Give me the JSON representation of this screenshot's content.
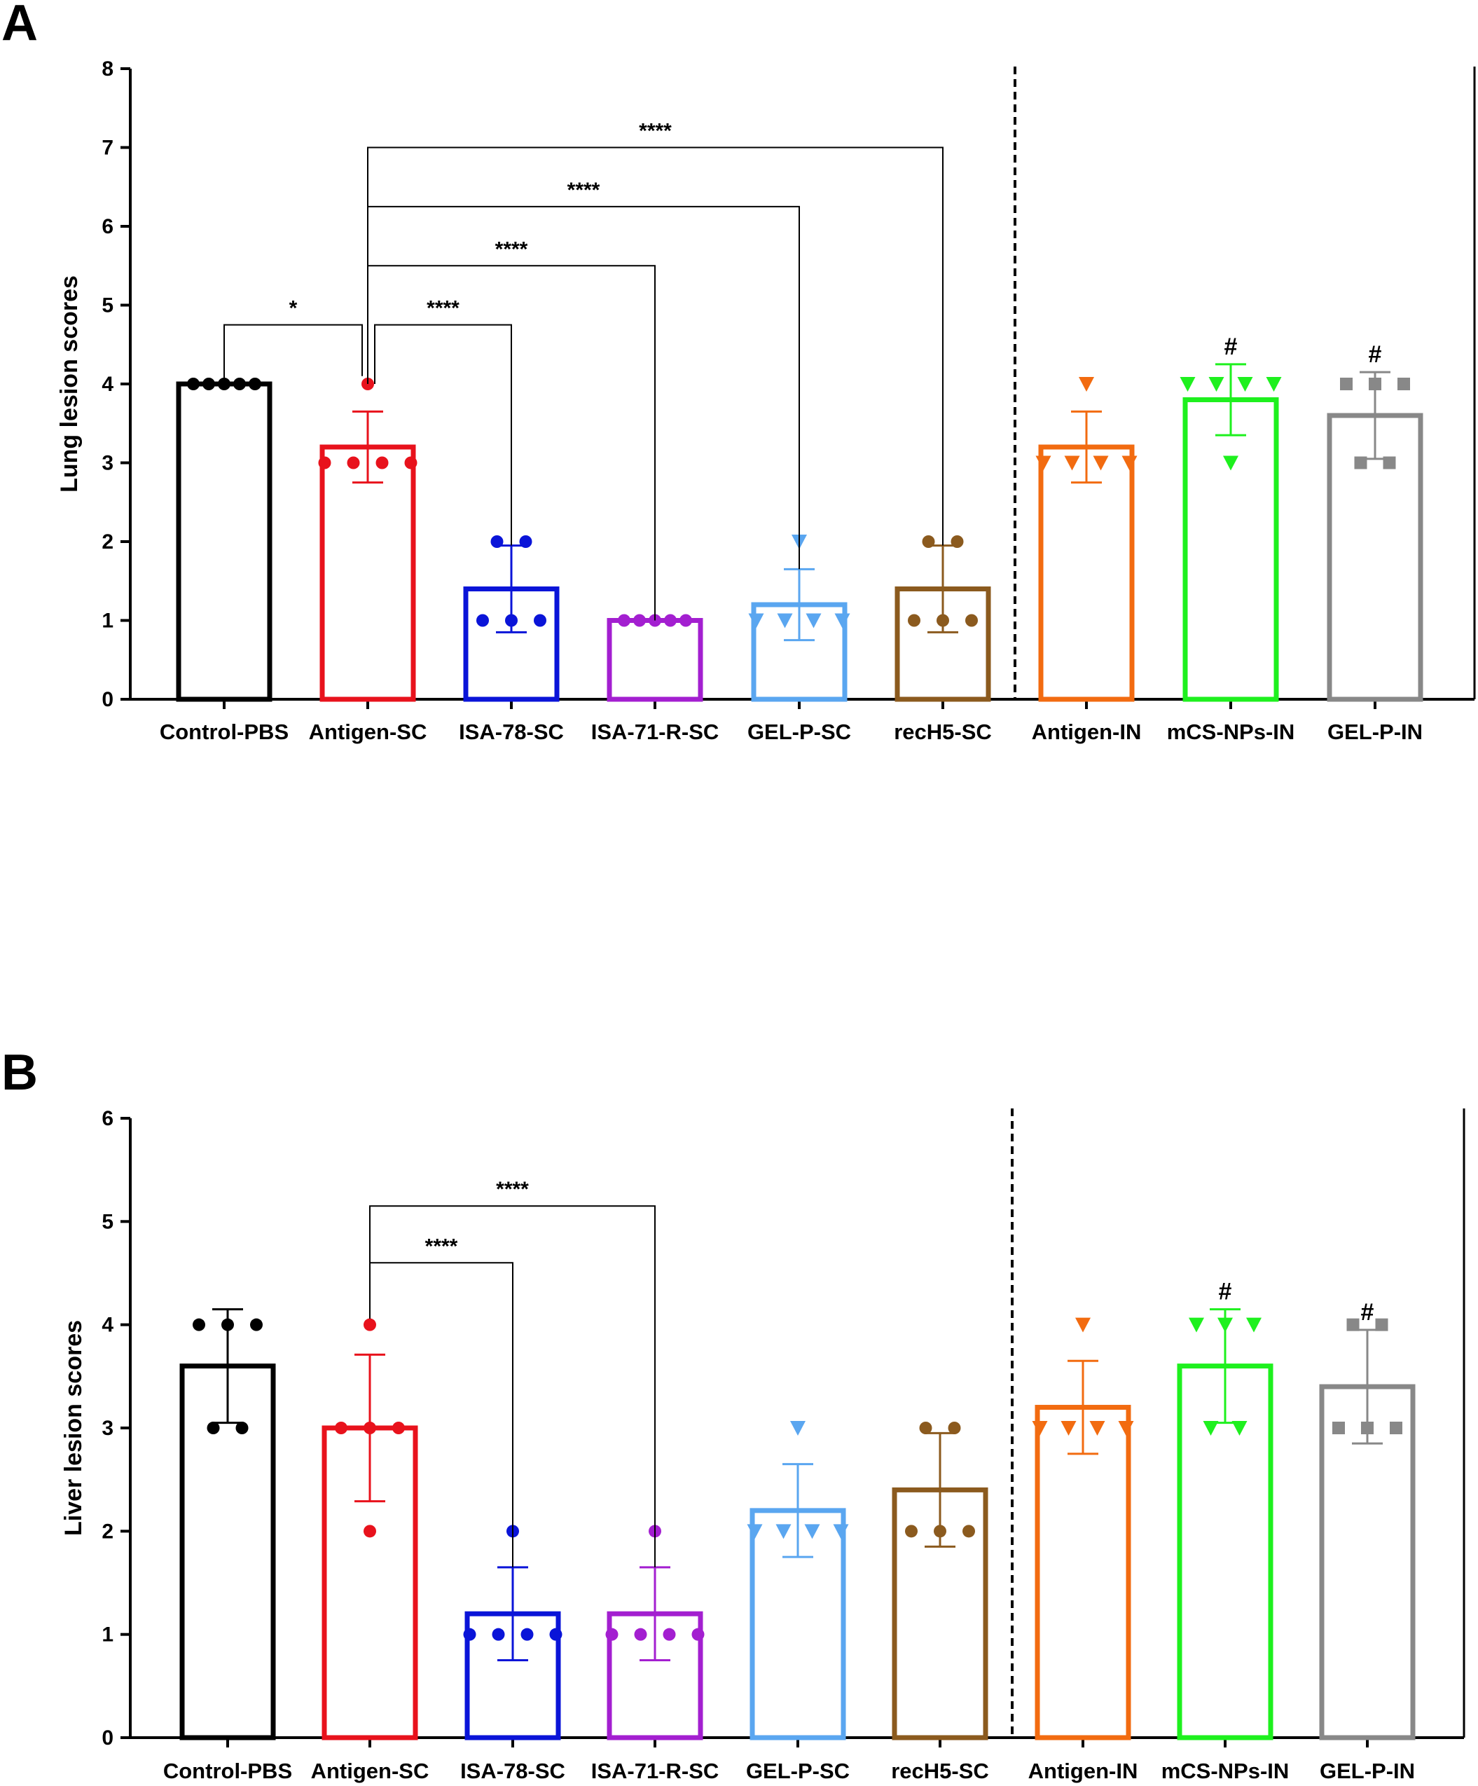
{
  "chart_data": [
    {
      "panel": "A",
      "type": "bar",
      "ylabel": "Lung lesion scores",
      "ylim": [
        0,
        8
      ],
      "yticks": [
        0,
        1,
        2,
        3,
        4,
        5,
        6,
        7,
        8
      ],
      "categories": [
        "Control-PBS",
        "Antigen-SC",
        "ISA-78-SC",
        "ISA-71-R-SC",
        "GEL-P-SC",
        "recH5-SC",
        "Antigen-IN",
        "mCS-NPs-IN",
        "GEL-P-IN"
      ],
      "colors": [
        "#000000",
        "#e8121c",
        "#0a14d8",
        "#a31fd0",
        "#5aa6f0",
        "#8b5a1e",
        "#f26b10",
        "#1ef01e",
        "#888888"
      ],
      "markers": [
        "circle",
        "circle",
        "circle",
        "circle",
        "triangle-down",
        "circle",
        "triangle-down",
        "triangle-down",
        "square"
      ],
      "means": [
        4.0,
        3.2,
        1.4,
        1.0,
        1.2,
        1.4,
        3.2,
        3.8,
        3.6
      ],
      "sd": [
        0,
        0.45,
        0.55,
        0,
        0.45,
        0.55,
        0.45,
        0.45,
        0.55
      ],
      "points": [
        [
          4,
          4,
          4,
          4,
          4
        ],
        [
          4,
          3,
          3,
          3,
          3
        ],
        [
          2,
          2,
          1,
          1,
          1
        ],
        [
          1,
          1,
          1,
          1,
          1
        ],
        [
          2,
          1,
          1,
          1,
          1
        ],
        [
          2,
          2,
          1,
          1,
          1
        ],
        [
          4,
          3,
          3,
          3,
          3
        ],
        [
          4,
          4,
          4,
          4,
          3
        ],
        [
          4,
          4,
          4,
          3,
          3
        ]
      ],
      "significance": [
        {
          "from": 0,
          "to": 1,
          "y": 4.75,
          "label": "*"
        },
        {
          "from": 1,
          "to": 2,
          "y": 4.75,
          "label": "****"
        },
        {
          "from": 1,
          "to": 3,
          "y": 5.5,
          "label": "****"
        },
        {
          "from": 1,
          "to": 4,
          "y": 6.25,
          "label": "****"
        },
        {
          "from": 1,
          "to": 5,
          "y": 7.0,
          "label": "****"
        }
      ],
      "hash_marks": [
        {
          "index": 7,
          "label": "#"
        },
        {
          "index": 8,
          "label": "#"
        }
      ],
      "divider_after": 5
    },
    {
      "panel": "B",
      "type": "bar",
      "ylabel": "Liver lesion scores",
      "ylim": [
        0,
        6
      ],
      "yticks": [
        0,
        1,
        2,
        3,
        4,
        5,
        6
      ],
      "categories": [
        "Control-PBS",
        "Antigen-SC",
        "ISA-78-SC",
        "ISA-71-R-SC",
        "GEL-P-SC",
        "recH5-SC",
        "Antigen-IN",
        "mCS-NPs-IN",
        "GEL-P-IN"
      ],
      "colors": [
        "#000000",
        "#e8121c",
        "#0a14d8",
        "#a31fd0",
        "#5aa6f0",
        "#8b5a1e",
        "#f26b10",
        "#1ef01e",
        "#888888"
      ],
      "markers": [
        "circle",
        "circle",
        "circle",
        "circle",
        "triangle-down",
        "circle",
        "triangle-down",
        "triangle-down",
        "square"
      ],
      "means": [
        3.6,
        3.0,
        1.2,
        1.2,
        2.2,
        2.4,
        3.2,
        3.6,
        3.4
      ],
      "sd": [
        0.55,
        0.71,
        0.45,
        0.45,
        0.45,
        0.55,
        0.45,
        0.55,
        0.55
      ],
      "points": [
        [
          4,
          4,
          4,
          3,
          3
        ],
        [
          4,
          3,
          3,
          3,
          2
        ],
        [
          2,
          1,
          1,
          1,
          1
        ],
        [
          2,
          1,
          1,
          1,
          1
        ],
        [
          3,
          2,
          2,
          2,
          2
        ],
        [
          3,
          3,
          2,
          2,
          2
        ],
        [
          4,
          3,
          3,
          3,
          3
        ],
        [
          4,
          4,
          4,
          3,
          3
        ],
        [
          4,
          4,
          3,
          3,
          3
        ]
      ],
      "significance": [
        {
          "from": 1,
          "to": 2,
          "y": 4.6,
          "label": "****"
        },
        {
          "from": 1,
          "to": 3,
          "y": 5.15,
          "label": "****"
        }
      ],
      "hash_marks": [
        {
          "index": 7,
          "label": "#"
        },
        {
          "index": 8,
          "label": "#"
        }
      ],
      "divider_after": 5
    }
  ]
}
